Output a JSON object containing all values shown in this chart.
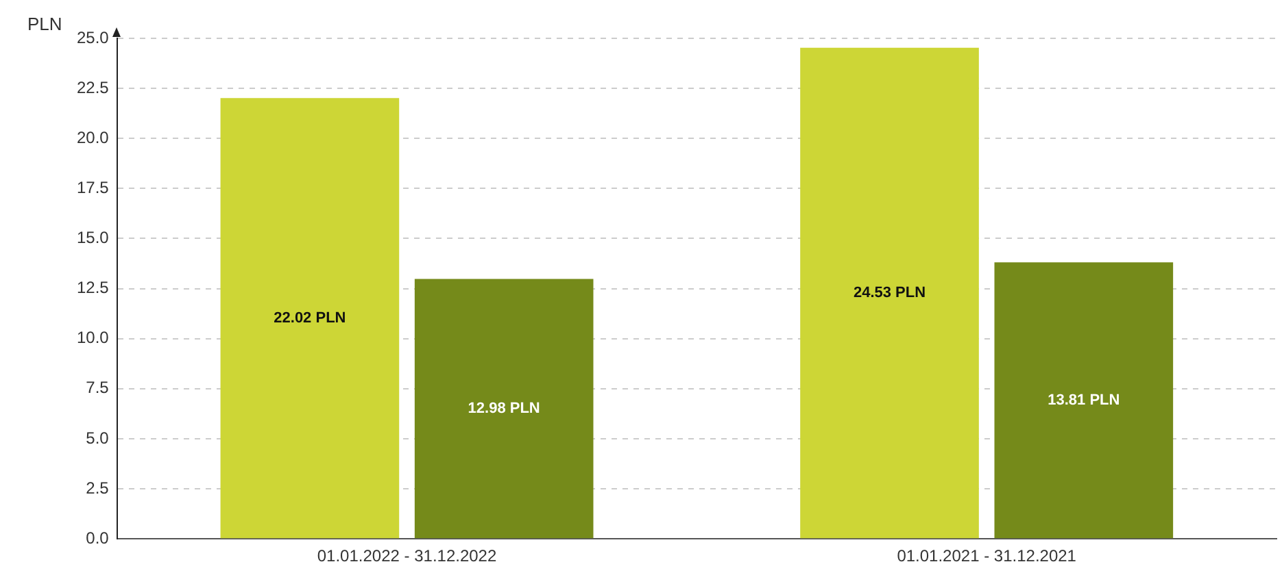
{
  "chart_data": {
    "type": "bar",
    "ylabel": "PLN",
    "categories": [
      "01.01.2022 - 31.12.2022",
      "01.01.2021 - 31.12.2021"
    ],
    "series": [
      {
        "color": "#cdd636",
        "values": [
          22.02,
          24.53
        ],
        "value_labels": [
          "22.02 PLN",
          "24.53 PLN"
        ]
      },
      {
        "color": "#758a1a",
        "values": [
          12.98,
          13.81
        ],
        "value_labels": [
          "12.98 PLN",
          "13.81 PLN"
        ]
      }
    ],
    "ylim": [
      0,
      25
    ],
    "yticks": [
      {
        "value": 0,
        "label": "0.0"
      },
      {
        "value": 2.5,
        "label": "2.5"
      },
      {
        "value": 5,
        "label": "5.0"
      },
      {
        "value": 7.5,
        "label": "7.5"
      },
      {
        "value": 10,
        "label": "10.0"
      },
      {
        "value": 12.5,
        "label": "12.5"
      },
      {
        "value": 15,
        "label": "15.0"
      },
      {
        "value": 17.5,
        "label": "17.5"
      },
      {
        "value": 20,
        "label": "20.0"
      },
      {
        "value": 22.5,
        "label": "22.5"
      },
      {
        "value": 25,
        "label": "25.0"
      }
    ],
    "grid": "y",
    "legend": false
  }
}
